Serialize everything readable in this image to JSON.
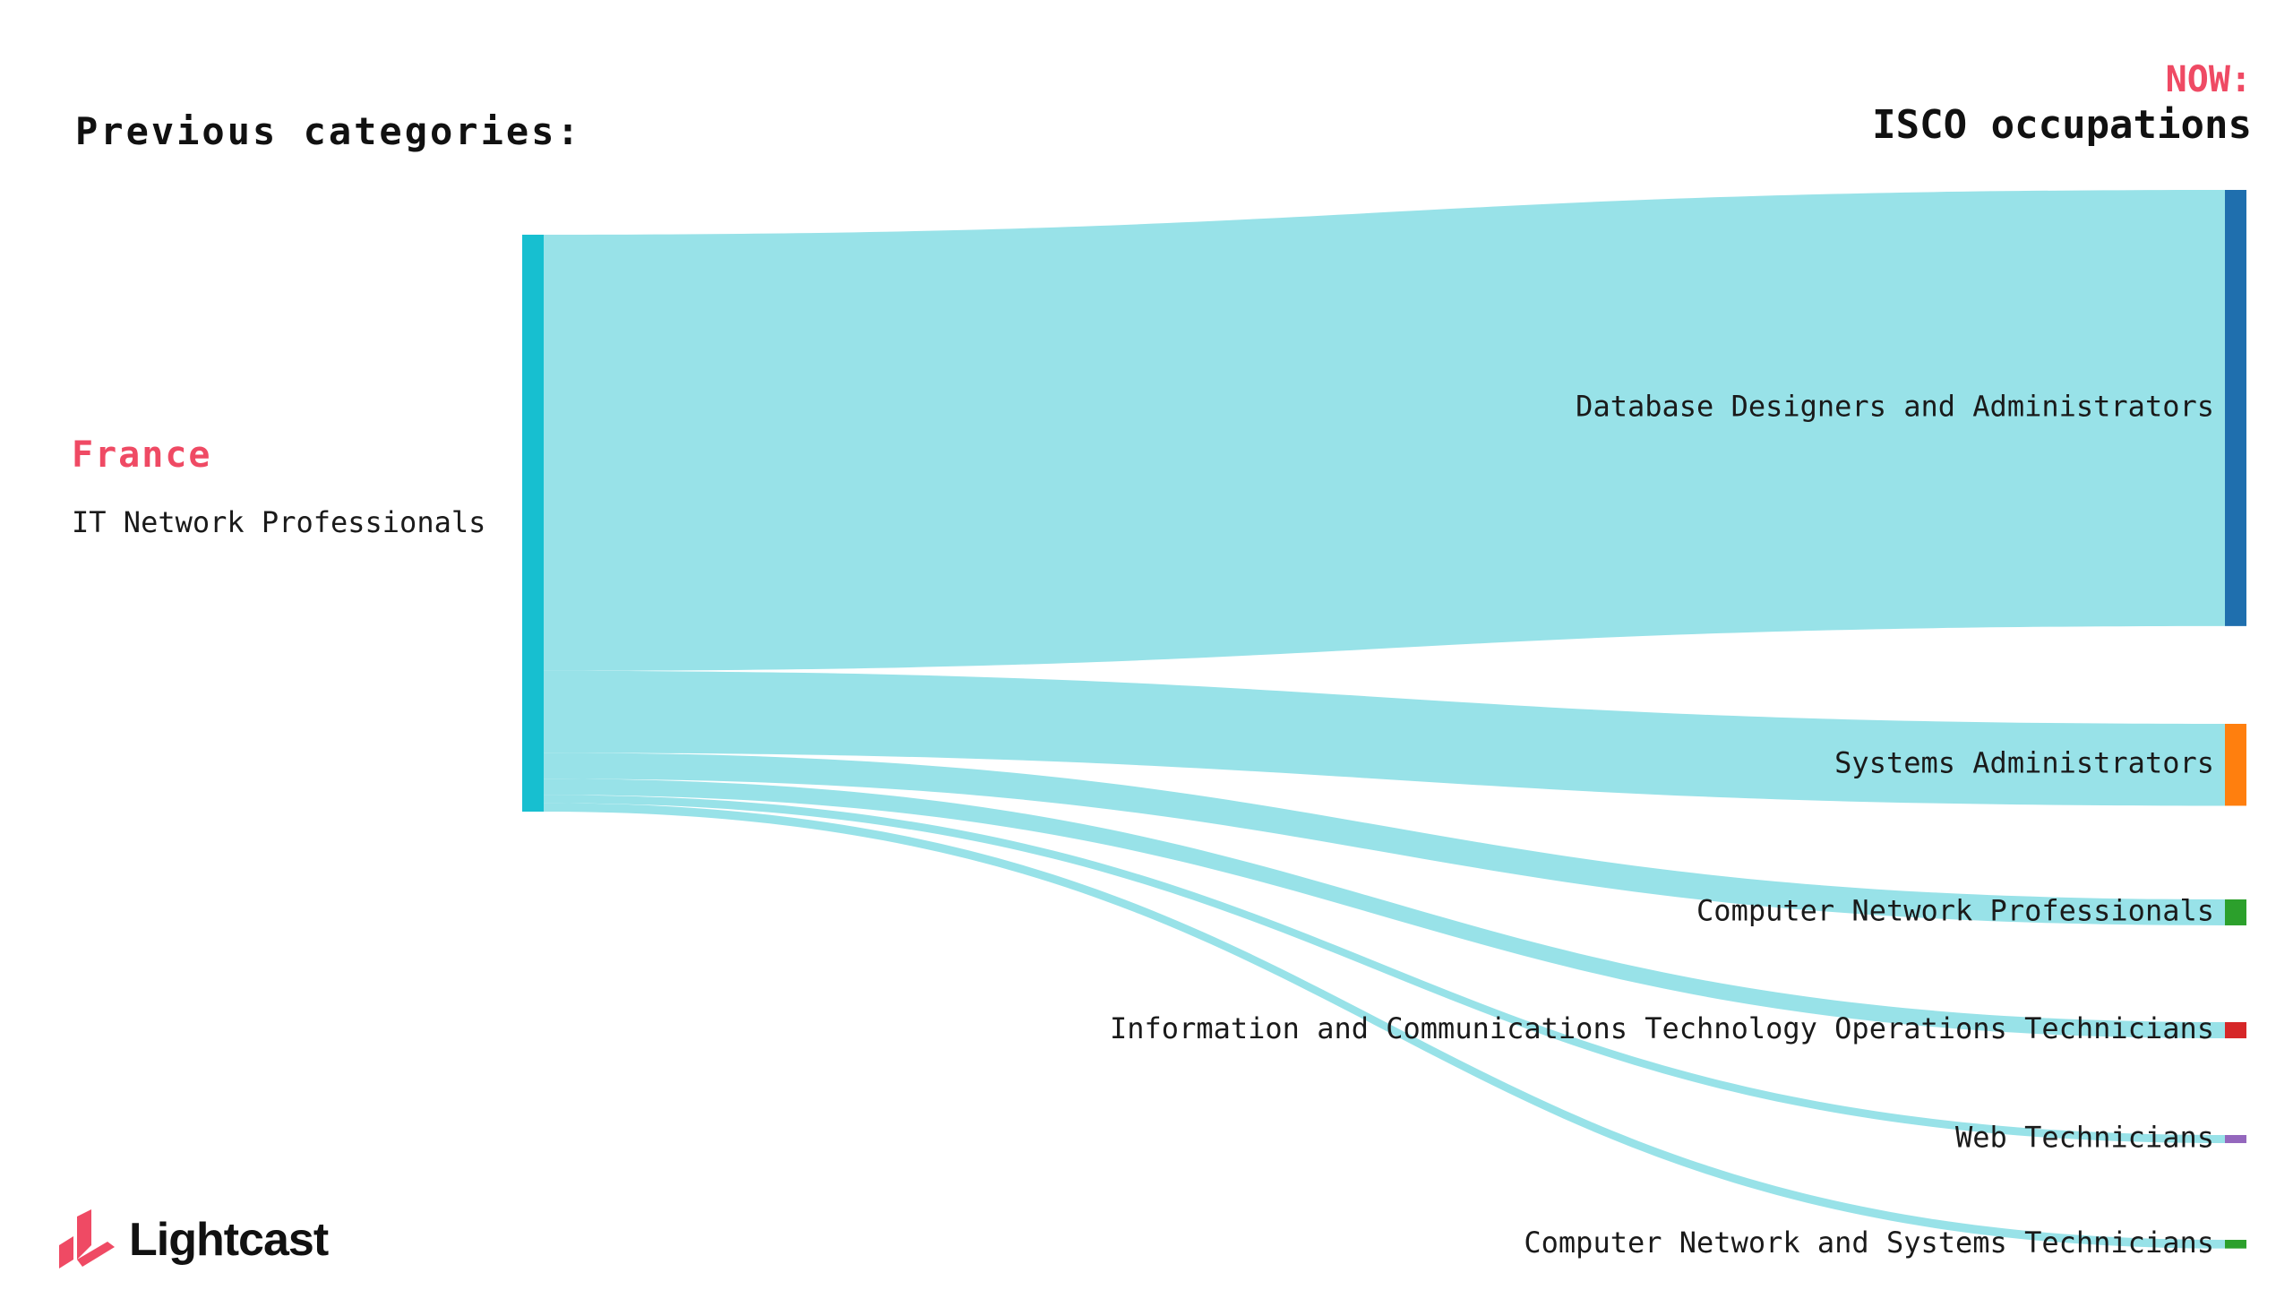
{
  "header": {
    "left_title": "Previous categories:",
    "right_kicker": "NOW:",
    "right_title": "ISCO occupations"
  },
  "source": {
    "country": "France",
    "name": "IT Network Professionals",
    "color": "#17bfd0"
  },
  "flow_color": "#98e2e8",
  "targets": [
    {
      "label": "Database Designers and Administrators",
      "share": 0.756,
      "color": "#1f6fae"
    },
    {
      "label": "Systems Administrators",
      "share": 0.142,
      "color": "#ff7f0e"
    },
    {
      "label": "Computer Network Professionals",
      "share": 0.045,
      "color": "#2ca02c"
    },
    {
      "label": "Information and Communications Technology Operations Technicians",
      "share": 0.028,
      "color": "#d62728"
    },
    {
      "label": "Web Technicians",
      "share": 0.014,
      "color": "#9467bd"
    },
    {
      "label": "Computer Network and Systems Technicians",
      "share": 0.015,
      "color": "#2ca02c"
    }
  ],
  "brand": {
    "name": "Lightcast",
    "icon": "lightcast-logo-icon",
    "color": "#ef4a64"
  }
}
